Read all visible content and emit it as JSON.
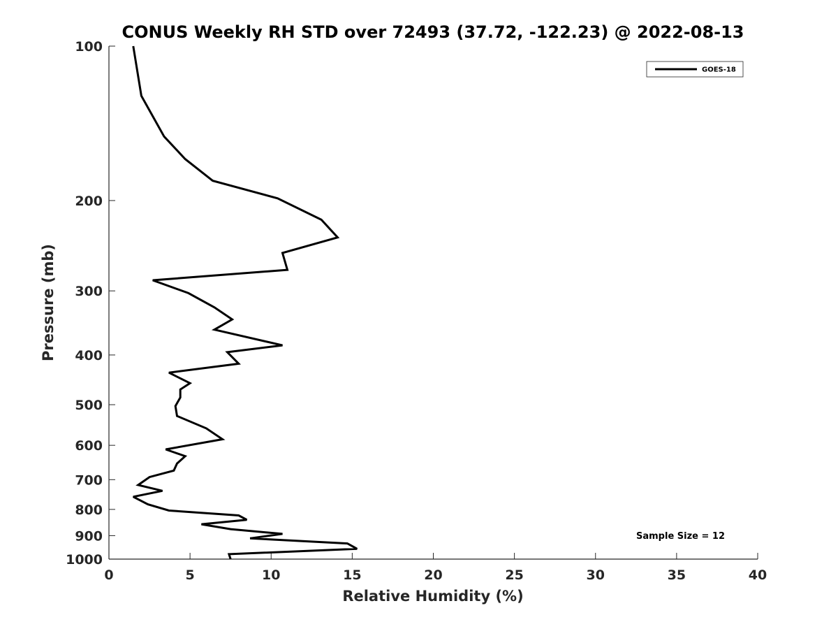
{
  "chart_data": {
    "type": "line",
    "title": "CONUS Weekly RH STD over 72493 (37.72, -122.23) @ 2022-08-13",
    "xlabel": "Relative Humidity (%)",
    "ylabel": "Pressure (mb)",
    "xlim": [
      0,
      40
    ],
    "ylim": [
      100,
      1000
    ],
    "y_scale": "log",
    "y_reversed": true,
    "x_ticks": [
      0,
      5,
      10,
      15,
      20,
      25,
      30,
      35,
      40
    ],
    "y_ticks": [
      100,
      200,
      300,
      400,
      500,
      600,
      700,
      800,
      900,
      1000
    ],
    "grid": false,
    "legend_position": "top-right",
    "annotation": "Sample Size = 12",
    "series": [
      {
        "name": "GOES-18",
        "color": "#000000",
        "points": [
          [
            1.5,
            100
          ],
          [
            2.0,
            125
          ],
          [
            3.4,
            150
          ],
          [
            4.7,
            166
          ],
          [
            6.4,
            183
          ],
          [
            10.4,
            198
          ],
          [
            13.1,
            218
          ],
          [
            14.1,
            236
          ],
          [
            10.7,
            253
          ],
          [
            11.0,
            273
          ],
          [
            2.7,
            286
          ],
          [
            4.9,
            303
          ],
          [
            6.5,
            323
          ],
          [
            7.6,
            341
          ],
          [
            6.5,
            357
          ],
          [
            10.7,
            383
          ],
          [
            7.3,
            395
          ],
          [
            8.0,
            416
          ],
          [
            3.7,
            433
          ],
          [
            5.0,
            454
          ],
          [
            4.4,
            467
          ],
          [
            4.4,
            484
          ],
          [
            4.1,
            503
          ],
          [
            4.2,
            526
          ],
          [
            6.0,
            556
          ],
          [
            7.0,
            584
          ],
          [
            3.5,
            611
          ],
          [
            4.7,
            630
          ],
          [
            4.2,
            651
          ],
          [
            4.0,
            672
          ],
          [
            2.5,
            692
          ],
          [
            1.8,
            717
          ],
          [
            3.3,
            736
          ],
          [
            1.5,
            756
          ],
          [
            2.4,
            782
          ],
          [
            3.7,
            804
          ],
          [
            8.0,
            822
          ],
          [
            8.5,
            838
          ],
          [
            5.7,
            855
          ],
          [
            7.5,
            874
          ],
          [
            10.7,
            893
          ],
          [
            8.7,
            911
          ],
          [
            14.7,
            932
          ],
          [
            15.3,
            955
          ],
          [
            7.4,
            978
          ],
          [
            7.5,
            1000
          ]
        ]
      }
    ]
  }
}
